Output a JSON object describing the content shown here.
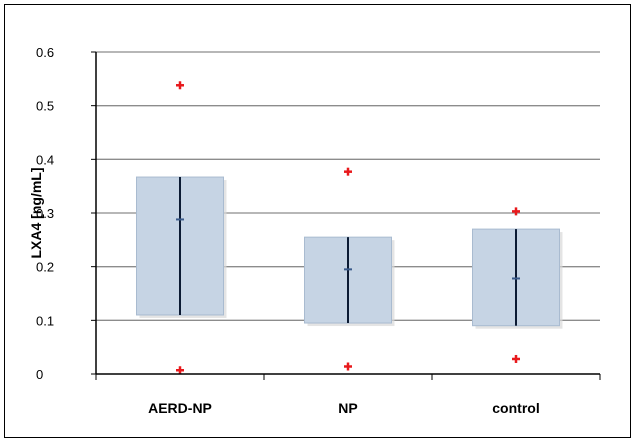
{
  "chart_data": {
    "type": "box",
    "title": "",
    "xlabel": "",
    "ylabel": "LXA4 [ng/mL]",
    "ylim": [
      0,
      0.6
    ],
    "yticks": [
      "0",
      "0.1",
      "0.2",
      "0.3",
      "0.4",
      "0.5",
      "0.6"
    ],
    "gridlines": "horizontal",
    "categories": [
      "AERD-NP",
      "NP",
      "control"
    ],
    "series": [
      {
        "category": "AERD-NP",
        "q1": 0.11,
        "q3": 0.367,
        "median": 0.288,
        "whisker_low": 0.11,
        "whisker_high": 0.367,
        "max": 0.538,
        "min": 0.007
      },
      {
        "category": "NP",
        "q1": 0.095,
        "q3": 0.255,
        "median": 0.195,
        "whisker_low": 0.095,
        "whisker_high": 0.255,
        "max": 0.377,
        "min": 0.014
      },
      {
        "category": "control",
        "q1": 0.09,
        "q3": 0.27,
        "median": 0.178,
        "whisker_low": 0.09,
        "whisker_high": 0.27,
        "max": 0.303,
        "min": 0.028
      }
    ],
    "colors": {
      "box_fill": "#c6d4e4",
      "box_edge": "#a9bbd0",
      "whisker": "#0b1a33",
      "median": "#3a5a8a",
      "outlier": "#e8191c",
      "grid": "#8c8c8c"
    }
  }
}
